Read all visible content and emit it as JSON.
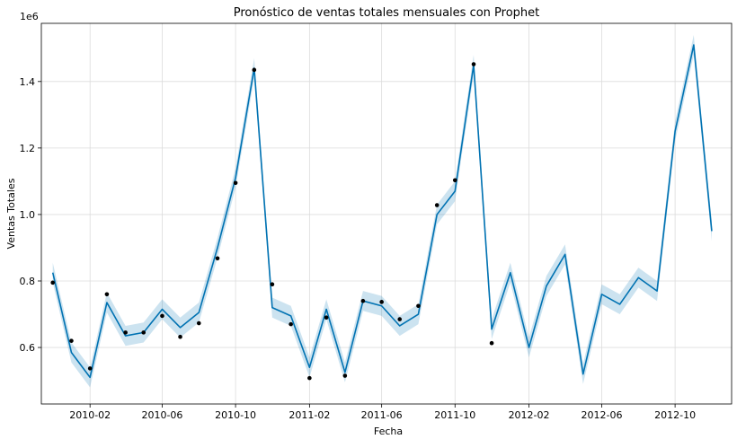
{
  "chart_data": {
    "type": "line",
    "title": "Pronóstico de ventas totales mensuales con Prophet",
    "xlabel": "Fecha",
    "ylabel": "Ventas Totales",
    "y_offset_label": "1e6",
    "x_tick_labels": [
      "2010-02",
      "2010-06",
      "2010-10",
      "2011-02",
      "2011-06",
      "2011-10",
      "2012-02",
      "2012-06",
      "2012-10"
    ],
    "y_tick_labels": [
      "0.6",
      "0.8",
      "1.0",
      "1.2",
      "1.4"
    ],
    "xlim": [
      "2009-11-12",
      "2013-01-03"
    ],
    "ylim": [
      0.43,
      1.575
    ],
    "grid": true,
    "colors": {
      "forecast": "#0072b2",
      "interval": "#0072b2",
      "observed": "#000000"
    },
    "dates": [
      "2009-12-01",
      "2010-01-01",
      "2010-02-01",
      "2010-03-01",
      "2010-04-01",
      "2010-05-01",
      "2010-06-01",
      "2010-07-01",
      "2010-08-01",
      "2010-09-01",
      "2010-10-01",
      "2010-11-01",
      "2010-12-01",
      "2011-01-01",
      "2011-02-01",
      "2011-03-01",
      "2011-04-01",
      "2011-05-01",
      "2011-06-01",
      "2011-07-01",
      "2011-08-01",
      "2011-09-01",
      "2011-10-01",
      "2011-11-01",
      "2011-12-01",
      "2012-01-01",
      "2012-02-01",
      "2012-03-01",
      "2012-04-01",
      "2012-05-01",
      "2012-06-01",
      "2012-07-01",
      "2012-08-01",
      "2012-09-01",
      "2012-10-01",
      "2012-11-01",
      "2012-12-01"
    ],
    "series": [
      {
        "name": "yhat",
        "values": [
          0.825,
          0.585,
          0.51,
          0.735,
          0.635,
          0.645,
          0.715,
          0.66,
          0.705,
          0.9,
          1.11,
          1.44,
          0.72,
          0.695,
          0.54,
          0.715,
          0.525,
          0.74,
          0.725,
          0.665,
          0.7,
          1.0,
          1.07,
          1.45,
          0.655,
          0.825,
          0.6,
          0.785,
          0.88,
          0.52,
          0.76,
          0.73,
          0.81,
          0.77,
          1.25,
          1.51,
          0.95
        ]
      },
      {
        "name": "yhat_lower",
        "values": [
          0.795,
          0.555,
          0.48,
          0.705,
          0.605,
          0.615,
          0.685,
          0.63,
          0.675,
          0.87,
          1.08,
          1.41,
          0.69,
          0.665,
          0.51,
          0.685,
          0.495,
          0.71,
          0.695,
          0.635,
          0.67,
          0.97,
          1.04,
          1.42,
          0.625,
          0.795,
          0.57,
          0.755,
          0.85,
          0.49,
          0.73,
          0.7,
          0.78,
          0.74,
          1.22,
          1.48,
          0.92
        ]
      },
      {
        "name": "yhat_upper",
        "values": [
          0.855,
          0.615,
          0.54,
          0.765,
          0.665,
          0.675,
          0.745,
          0.69,
          0.735,
          0.93,
          1.14,
          1.47,
          0.75,
          0.725,
          0.57,
          0.745,
          0.555,
          0.77,
          0.755,
          0.695,
          0.73,
          1.03,
          1.1,
          1.48,
          0.685,
          0.855,
          0.63,
          0.815,
          0.91,
          0.55,
          0.79,
          0.76,
          0.84,
          0.8,
          1.28,
          1.54,
          0.98
        ]
      },
      {
        "name": "y",
        "x": [
          "2009-12-01",
          "2010-01-01",
          "2010-02-01",
          "2010-03-01",
          "2010-04-01",
          "2010-05-01",
          "2010-06-01",
          "2010-07-01",
          "2010-08-01",
          "2010-09-01",
          "2010-10-01",
          "2010-11-01",
          "2010-12-01",
          "2011-01-01",
          "2011-02-01",
          "2011-03-01",
          "2011-04-01",
          "2011-05-01",
          "2011-06-01",
          "2011-07-01",
          "2011-08-01",
          "2011-09-01",
          "2011-10-01",
          "2011-11-01",
          "2011-12-01"
        ],
        "values": [
          0.795,
          0.62,
          0.537,
          0.76,
          0.645,
          0.645,
          0.695,
          0.632,
          0.673,
          0.868,
          1.095,
          1.435,
          0.79,
          0.67,
          0.508,
          0.69,
          0.515,
          0.74,
          0.737,
          0.685,
          0.725,
          1.028,
          1.103,
          1.452,
          0.613
        ]
      }
    ]
  }
}
